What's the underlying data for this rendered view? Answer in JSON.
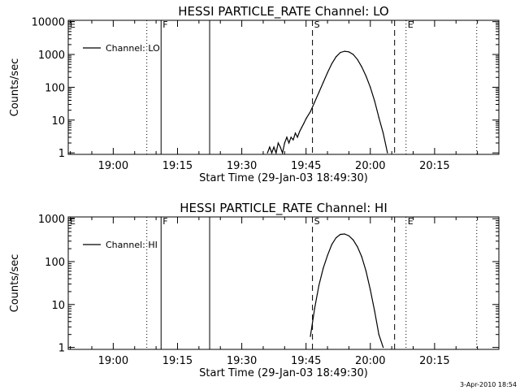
{
  "footer_text": "3-Apr-2010 18:54",
  "chart_data": [
    {
      "type": "line",
      "title": "HESSI PARTICLE_RATE Channel: LO",
      "xlabel": "Start Time (29-Jan-03 18:49:30)",
      "ylabel": "Counts/sec",
      "y_scale": "log",
      "ylim": [
        0.9,
        11000
      ],
      "xlim": [
        "18:49:30",
        "20:30:00"
      ],
      "x_ticks": [
        "19:00",
        "19:15",
        "19:30",
        "19:45",
        "20:00",
        "20:15"
      ],
      "y_ticks": [
        "1",
        "10",
        "100",
        "1000",
        "10000"
      ],
      "legend": {
        "placement": "top-left",
        "entries": [
          "Channel: LO"
        ]
      },
      "grid": false,
      "vertical_markers": [
        {
          "time": "18:49:30",
          "style": "dotted",
          "label": "E"
        },
        {
          "time": "19:07:50",
          "style": "dotted",
          "label": ""
        },
        {
          "time": "19:11:10",
          "style": "solid",
          "label": "F"
        },
        {
          "time": "19:22:30",
          "style": "solid",
          "label": ""
        },
        {
          "time": "19:46:30",
          "style": "dashed",
          "label": "S"
        },
        {
          "time": "20:05:40",
          "style": "dashed",
          "label": ""
        },
        {
          "time": "20:08:20",
          "style": "dotted",
          "label": "E"
        },
        {
          "time": "20:24:50",
          "style": "dotted",
          "label": ""
        }
      ],
      "series": [
        {
          "name": "Channel: LO",
          "x": [
            "19:36:00",
            "19:36:30",
            "19:37:00",
            "19:37:30",
            "19:38:00",
            "19:38:30",
            "19:39:00",
            "19:39:30",
            "19:40:00",
            "19:40:30",
            "19:41:00",
            "19:41:30",
            "19:42:00",
            "19:42:30",
            "19:43:00",
            "19:43:30",
            "19:44:00",
            "19:44:30",
            "19:45:00",
            "19:46:00",
            "19:47:00",
            "19:48:00",
            "19:49:00",
            "19:50:00",
            "19:51:00",
            "19:52:00",
            "19:53:00",
            "19:54:00",
            "19:55:00",
            "19:56:00",
            "19:57:00",
            "19:58:00",
            "19:59:00",
            "20:00:00",
            "20:01:00",
            "20:02:00",
            "20:03:00",
            "20:04:00"
          ],
          "y": [
            1,
            1.5,
            1,
            1.5,
            1,
            2,
            1.5,
            1,
            2,
            3,
            2,
            3,
            2.5,
            4,
            3,
            4.5,
            6,
            8,
            11,
            18,
            35,
            70,
            140,
            280,
            520,
            850,
            1150,
            1250,
            1200,
            1000,
            700,
            420,
            220,
            100,
            38,
            12,
            4,
            1
          ]
        }
      ]
    },
    {
      "type": "line",
      "title": "HESSI PARTICLE_RATE Channel: HI",
      "xlabel": "Start Time (29-Jan-03 18:49:30)",
      "ylabel": "Counts/sec",
      "y_scale": "log",
      "ylim": [
        0.9,
        1100
      ],
      "xlim": [
        "18:49:30",
        "20:30:00"
      ],
      "x_ticks": [
        "19:00",
        "19:15",
        "19:30",
        "19:45",
        "20:00",
        "20:15"
      ],
      "y_ticks": [
        "1",
        "10",
        "100",
        "1000"
      ],
      "legend": {
        "placement": "top-left",
        "entries": [
          "Channel: HI"
        ]
      },
      "grid": false,
      "vertical_markers": [
        {
          "time": "18:49:30",
          "style": "dotted",
          "label": "E"
        },
        {
          "time": "19:07:50",
          "style": "dotted",
          "label": ""
        },
        {
          "time": "19:11:10",
          "style": "solid",
          "label": "F"
        },
        {
          "time": "19:22:30",
          "style": "solid",
          "label": ""
        },
        {
          "time": "19:46:30",
          "style": "dashed",
          "label": "S"
        },
        {
          "time": "20:05:40",
          "style": "dashed",
          "label": ""
        },
        {
          "time": "20:08:20",
          "style": "dotted",
          "label": "E"
        },
        {
          "time": "20:24:50",
          "style": "dotted",
          "label": ""
        }
      ],
      "series": [
        {
          "name": "Channel: HI",
          "x": [
            "19:46:00",
            "19:47:00",
            "19:48:00",
            "19:49:00",
            "19:50:00",
            "19:51:00",
            "19:52:00",
            "19:53:00",
            "19:54:00",
            "19:55:00",
            "19:56:00",
            "19:57:00",
            "19:58:00",
            "19:59:00",
            "20:00:00",
            "20:01:00",
            "20:02:00",
            "20:03:00"
          ],
          "y": [
            1.8,
            8,
            28,
            70,
            140,
            250,
            360,
            430,
            440,
            400,
            320,
            220,
            130,
            60,
            22,
            7,
            2,
            1
          ]
        }
      ]
    }
  ]
}
